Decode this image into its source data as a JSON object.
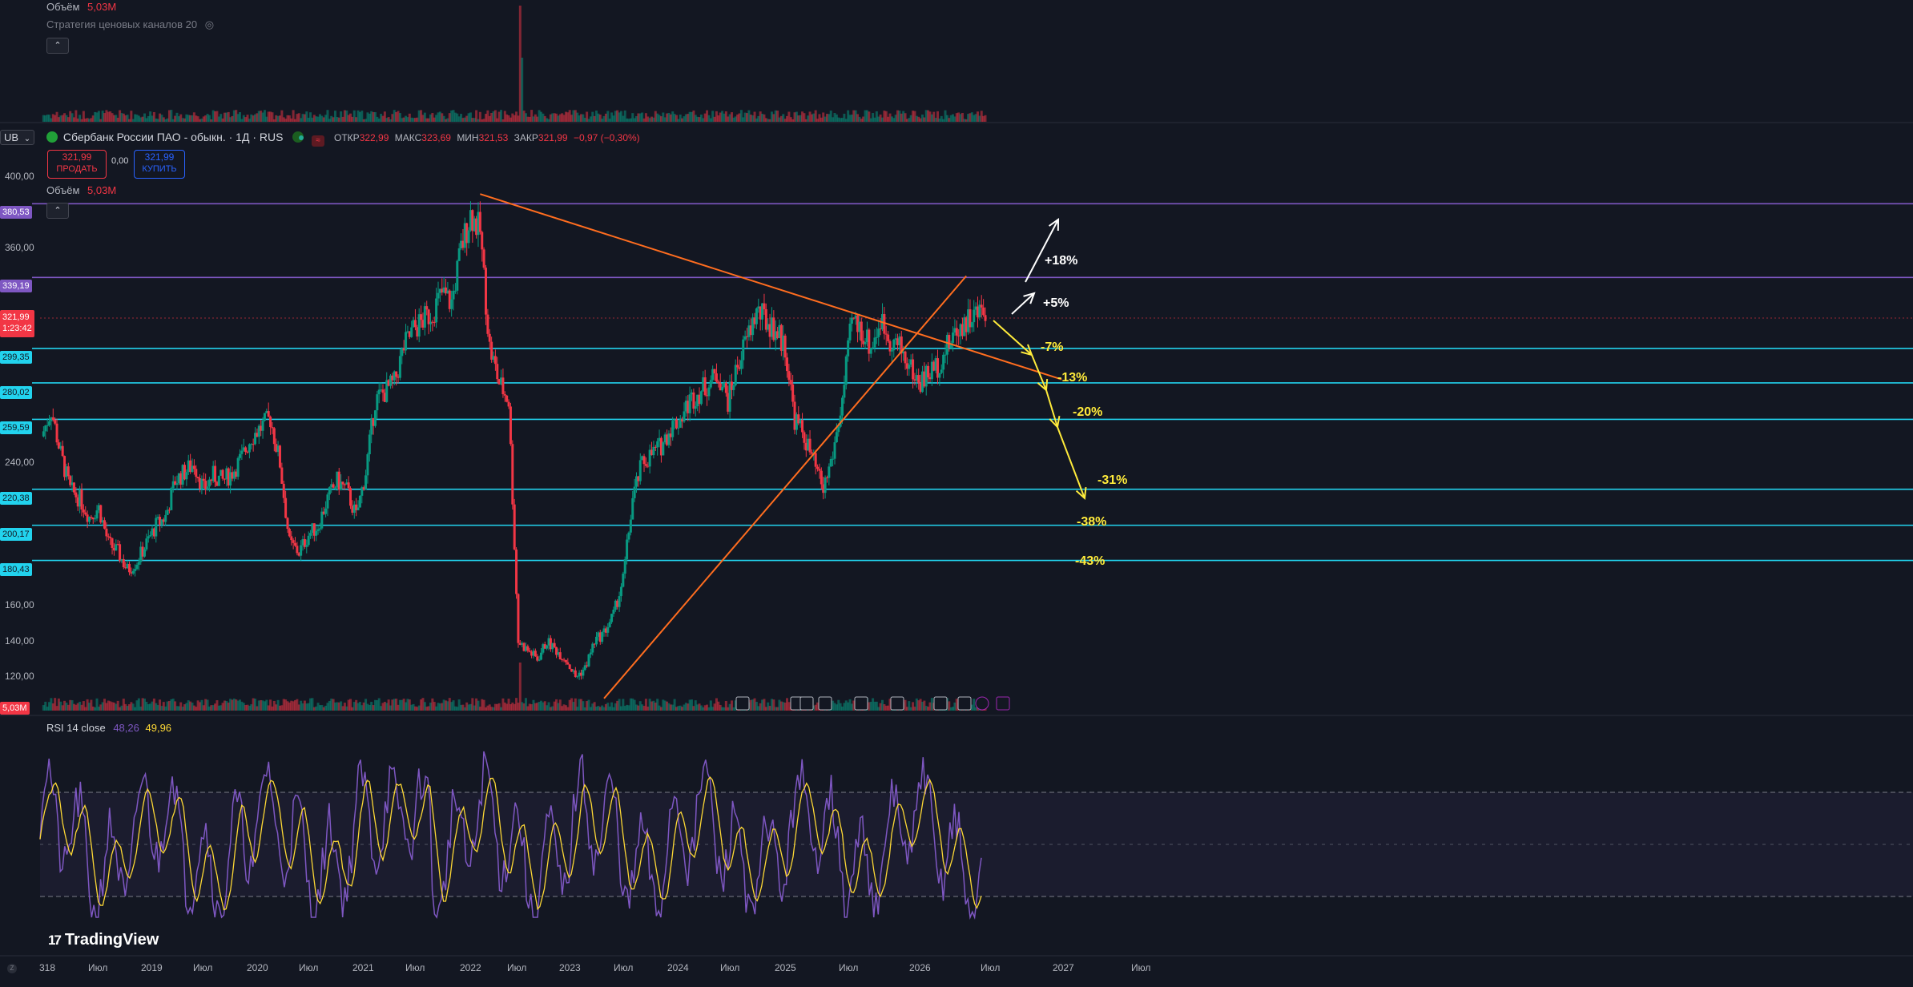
{
  "volume_pane": {
    "label": "Объём",
    "value": "5,03M",
    "strategy": "Стратегия ценовых каналов 20"
  },
  "symbol_header": {
    "currency_tab": "UB",
    "title": "Сбербанк России ПАО - обыкн. · 1Д · RUS",
    "open_label": "ОТКР",
    "open": "322,99",
    "high_label": "МАКС",
    "high": "323,69",
    "low_label": "МИН",
    "low": "321,53",
    "close_label": "ЗАКР",
    "close": "321,99",
    "change": "−0,97 (−0,30%)"
  },
  "trade_buttons": {
    "sell_price": "321,99",
    "sell_label": "ПРОДАТЬ",
    "spread": "0,00",
    "buy_price": "321,99",
    "buy_label": "КУПИТЬ"
  },
  "volume_label": {
    "label": "Объём",
    "value": "5,03M"
  },
  "rsi": {
    "label": "RSI 14 close",
    "value1": "48,26",
    "value2": "49,96"
  },
  "branding": {
    "logo_text": "TradingView"
  },
  "colors": {
    "background": "#131722",
    "candle_up": "#089981",
    "candle_down": "#f23645",
    "level_cyan": "#22d3ee",
    "level_purple": "#7e57c2",
    "trendline": "#ff6d1f",
    "arrow_white": "#ffffff",
    "arrow_yellow": "#ffeb3b",
    "rsi_line": "#7e57c2",
    "rsi_ma": "#fdd835"
  },
  "chart_data": {
    "type": "candlestick",
    "title": "Сбербанк России ПАО - обыкн. · 1Д · RUS",
    "ylim": [
      105,
      412
    ],
    "y_ticks": [
      "400,00",
      "360,00",
      "240,00",
      "160,00",
      "140,00",
      "120,00"
    ],
    "x_ticks": [
      "2018",
      "Июл",
      "2019",
      "Июл",
      "2020",
      "Июл",
      "2021",
      "Июл",
      "2022",
      "Июл",
      "2023",
      "Июл",
      "2024",
      "Июл",
      "2025",
      "Июл",
      "2026",
      "Июл",
      "2027",
      "Июл"
    ],
    "horizontal_levels": [
      {
        "price": 380.53,
        "label": "380,53",
        "color": "purple"
      },
      {
        "price": 339.19,
        "label": "339,19",
        "color": "purple"
      },
      {
        "price": 299.35,
        "label": "299,35",
        "color": "cyan"
      },
      {
        "price": 280.02,
        "label": "280,02",
        "color": "cyan"
      },
      {
        "price": 259.59,
        "label": "259,59",
        "color": "cyan"
      },
      {
        "price": 220.38,
        "label": "220,38",
        "color": "cyan"
      },
      {
        "price": 200.17,
        "label": "200,17",
        "color": "cyan"
      },
      {
        "price": 180.43,
        "label": "180,43",
        "color": "cyan"
      }
    ],
    "last_price": {
      "price": 321.99,
      "label": "321,99",
      "countdown": "1:23:42"
    },
    "last_volume_label": "5,03M",
    "trendlines": [
      {
        "from": [
          "2021-11",
          386
        ],
        "to": [
          "2026-12",
          282
        ]
      },
      {
        "from": [
          "2022-12",
          103
        ],
        "to": [
          "2026-02",
          340
        ]
      }
    ],
    "scenario_annotations": [
      {
        "text": "+18%",
        "color": "white"
      },
      {
        "text": "+5%",
        "color": "white"
      },
      {
        "text": "-7%",
        "color": "yellow"
      },
      {
        "text": "-13%",
        "color": "yellow"
      },
      {
        "text": "-20%",
        "color": "yellow"
      },
      {
        "text": "-31%",
        "color": "yellow"
      },
      {
        "text": "-38%",
        "color": "yellow"
      },
      {
        "text": "-43%",
        "color": "yellow"
      }
    ],
    "price_series": {
      "description": "daily closes approximated at monthly resolution",
      "dates": [
        "2018-01",
        "2018-02",
        "2018-03",
        "2018-04",
        "2018-05",
        "2018-06",
        "2018-07",
        "2018-08",
        "2018-09",
        "2018-10",
        "2018-11",
        "2018-12",
        "2019-01",
        "2019-02",
        "2019-03",
        "2019-04",
        "2019-05",
        "2019-06",
        "2019-07",
        "2019-08",
        "2019-09",
        "2019-10",
        "2019-11",
        "2019-12",
        "2020-01",
        "2020-02",
        "2020-03",
        "2020-04",
        "2020-05",
        "2020-06",
        "2020-07",
        "2020-08",
        "2020-09",
        "2020-10",
        "2020-11",
        "2020-12",
        "2021-01",
        "2021-02",
        "2021-03",
        "2021-04",
        "2021-05",
        "2021-06",
        "2021-07",
        "2021-08",
        "2021-09",
        "2021-10",
        "2021-11",
        "2021-12",
        "2022-01",
        "2022-02",
        "2022-03",
        "2022-04",
        "2022-05",
        "2022-06",
        "2022-07",
        "2022-08",
        "2022-09",
        "2022-10",
        "2022-11",
        "2022-12",
        "2023-01",
        "2023-02",
        "2023-03",
        "2023-04",
        "2023-05",
        "2023-06",
        "2023-07",
        "2023-08",
        "2023-09",
        "2023-10",
        "2023-11",
        "2023-12",
        "2024-01",
        "2024-02",
        "2024-03",
        "2024-04",
        "2024-05",
        "2024-06",
        "2024-07",
        "2024-08",
        "2024-09",
        "2024-10",
        "2024-11",
        "2024-12",
        "2025-01",
        "2025-02",
        "2025-03",
        "2025-04",
        "2025-05",
        "2025-06",
        "2025-07",
        "2025-08",
        "2025-09",
        "2025-10",
        "2025-11",
        "2025-12",
        "2026-01",
        "2026-02",
        "2026-03",
        "2026-04"
      ],
      "close": [
        250,
        265,
        240,
        220,
        215,
        205,
        210,
        190,
        185,
        175,
        180,
        190,
        200,
        205,
        225,
        230,
        235,
        220,
        228,
        225,
        230,
        238,
        250,
        255,
        260,
        235,
        190,
        185,
        195,
        200,
        215,
        225,
        220,
        205,
        230,
        270,
        275,
        280,
        300,
        310,
        315,
        320,
        330,
        325,
        355,
        375,
        365,
        300,
        280,
        270,
        135,
        130,
        125,
        135,
        130,
        125,
        115,
        120,
        135,
        140,
        150,
        170,
        215,
        235,
        240,
        245,
        255,
        260,
        270,
        275,
        280,
        285,
        270,
        290,
        305,
        320,
        315,
        310,
        300,
        260,
        250,
        235,
        220,
        240,
        270,
        315,
        310,
        300,
        315,
        305,
        300,
        290,
        280,
        285,
        290,
        300,
        310,
        315,
        318,
        322
      ]
    },
    "rsi_series": {
      "line": "RSI 14 close",
      "ma": "RSI MA",
      "bands": [
        30,
        50,
        70
      ],
      "note": "oscillating between ~25 and ~88"
    }
  }
}
